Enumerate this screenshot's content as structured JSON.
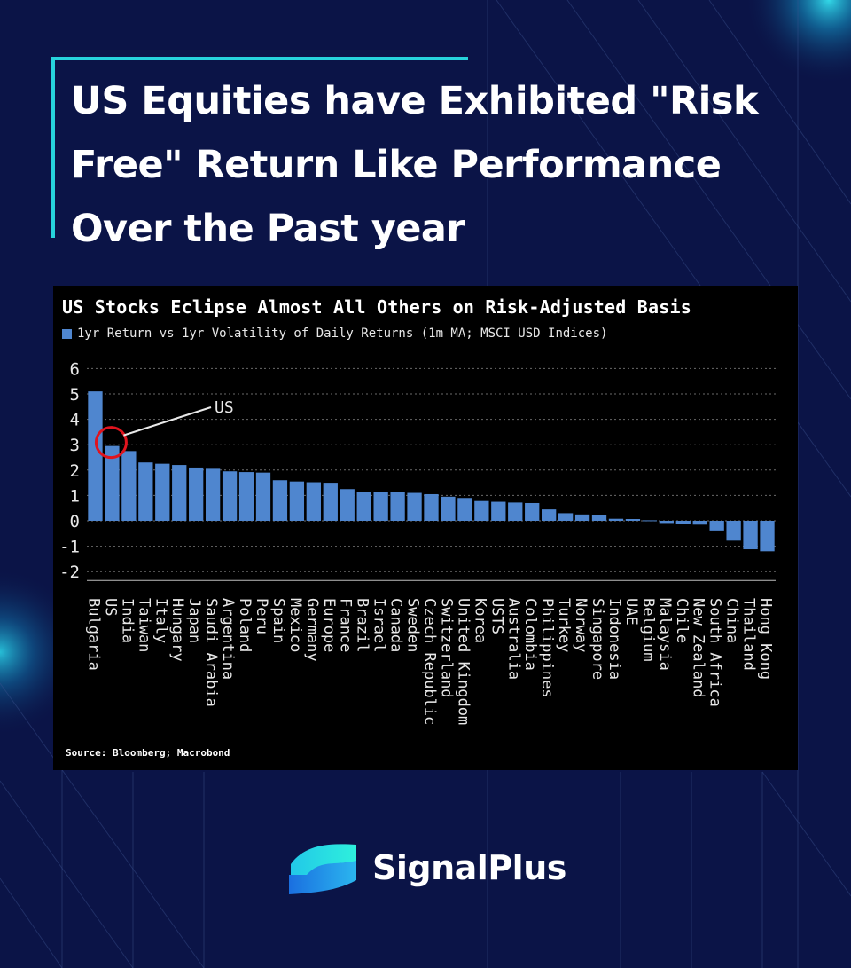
{
  "headline": "US Equities have Exhibited \"Risk Free\" Return Like Performance Over the Past year",
  "brand": {
    "name": "SignalPlus",
    "logo_icon": "signalplus-logo-icon"
  },
  "colors": {
    "background": "#0b1447",
    "accent": "#27d3dc",
    "bar": "#4f86cf",
    "highlight": "#e0141e"
  },
  "chart_data": {
    "type": "bar",
    "title": "US Stocks Eclipse Almost All Others on Risk-Adjusted Basis",
    "legend": [
      {
        "label": "1yr Return vs 1yr Volatility of Daily Returns (1m MA; MSCI USD Indices)"
      }
    ],
    "source": "Source: Bloomberg; Macrobond",
    "annotation": {
      "label": "US",
      "target": "US"
    },
    "yticks": [
      6,
      5,
      4,
      3,
      2,
      1,
      0,
      -1,
      -2
    ],
    "ylim": [
      -2,
      6
    ],
    "grid": true,
    "categories": [
      "Bulgaria",
      "US",
      "India",
      "Taiwan",
      "Italy",
      "Hungary",
      "Japan",
      "Saudi Arabia",
      "Argentina",
      "Poland",
      "Peru",
      "Spain",
      "Mexico",
      "Germany",
      "Europe",
      "France",
      "Brazil",
      "Israel",
      "Canada",
      "Sweden",
      "Czech Republic",
      "Switzerland",
      "United Kingdom",
      "Korea",
      "USTS",
      "Australia",
      "Colombia",
      "Philippines",
      "Turkey",
      "Norway",
      "Singapore",
      "Indonesia",
      "UAE",
      "Belgium",
      "Malaysia",
      "Chile",
      "New Zealand",
      "South Africa",
      "China",
      "Thailand",
      "Hong Kong"
    ],
    "values": [
      5.1,
      2.95,
      2.75,
      2.3,
      2.25,
      2.2,
      2.1,
      2.05,
      1.95,
      1.92,
      1.9,
      1.6,
      1.55,
      1.52,
      1.5,
      1.25,
      1.15,
      1.13,
      1.12,
      1.1,
      1.05,
      0.95,
      0.9,
      0.78,
      0.75,
      0.72,
      0.7,
      0.45,
      0.3,
      0.25,
      0.22,
      0.08,
      0.07,
      0.02,
      -0.12,
      -0.14,
      -0.15,
      -0.38,
      -0.78,
      -1.12,
      -1.2
    ]
  }
}
